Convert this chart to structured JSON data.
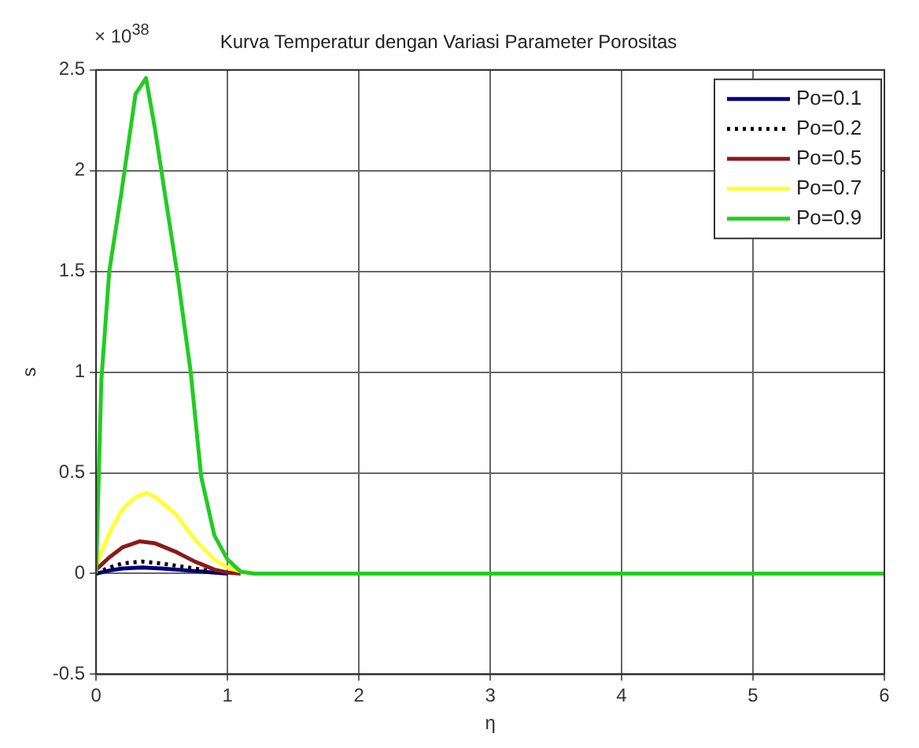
{
  "chart_data": {
    "type": "line",
    "title": "Kurva Temperatur dengan Variasi Parameter Porositas",
    "xlabel": "η",
    "ylabel": "s",
    "annotations": [
      "× 10$^{38}$"
    ],
    "xlim": [
      0,
      6
    ],
    "xticks": [
      0,
      1,
      2,
      3,
      4,
      5,
      6
    ],
    "ylim": [
      -0.5,
      2.5
    ],
    "yticks": [
      -0.5,
      0,
      0.5,
      1,
      1.5,
      2,
      2.5
    ],
    "grid": true,
    "legend": "top right",
    "marker": "none",
    "series": [
      {
        "name": "Po=0.1",
        "color": "#000080",
        "line_style": "solid",
        "x": [
          0,
          0.1,
          0.2,
          0.35,
          0.5,
          0.7,
          0.9,
          1.0
        ],
        "values": [
          0,
          0.015,
          0.025,
          0.03,
          0.025,
          0.015,
          0.005,
          0
        ]
      },
      {
        "name": "Po=0.2",
        "color": "#000000",
        "line_style": "dotted",
        "x": [
          0,
          0.1,
          0.2,
          0.35,
          0.5,
          0.7,
          0.9,
          1.0
        ],
        "values": [
          0,
          0.03,
          0.05,
          0.06,
          0.05,
          0.03,
          0.01,
          0
        ]
      },
      {
        "name": "Po=0.5",
        "color": "#8b1a1a",
        "line_style": "solid",
        "x": [
          0,
          0.1,
          0.2,
          0.33,
          0.45,
          0.6,
          0.75,
          0.9,
          1.0,
          1.1
        ],
        "values": [
          0.02,
          0.08,
          0.13,
          0.16,
          0.15,
          0.11,
          0.06,
          0.02,
          0.005,
          0
        ]
      },
      {
        "name": "Po=0.7",
        "color": "#ffff33",
        "line_style": "solid",
        "x": [
          0,
          0.1,
          0.2,
          0.3,
          0.38,
          0.45,
          0.6,
          0.75,
          0.9,
          1.0,
          1.1,
          1.2
        ],
        "values": [
          0.04,
          0.2,
          0.32,
          0.38,
          0.4,
          0.38,
          0.3,
          0.17,
          0.07,
          0.03,
          0.01,
          0
        ]
      },
      {
        "name": "Po=0.9",
        "color": "#22cc22",
        "line_style": "solid",
        "x": [
          0,
          0.04,
          0.1,
          0.19,
          0.3,
          0.38,
          0.45,
          0.52,
          0.62,
          0.72,
          0.8,
          0.9,
          1.0,
          1.1,
          1.2,
          2,
          3,
          4,
          5,
          6
        ],
        "values": [
          0,
          0.96,
          1.5,
          1.88,
          2.38,
          2.46,
          2.2,
          1.9,
          1.48,
          1.0,
          0.48,
          0.19,
          0.07,
          0.01,
          0,
          0,
          0,
          0,
          0,
          0
        ]
      }
    ]
  }
}
